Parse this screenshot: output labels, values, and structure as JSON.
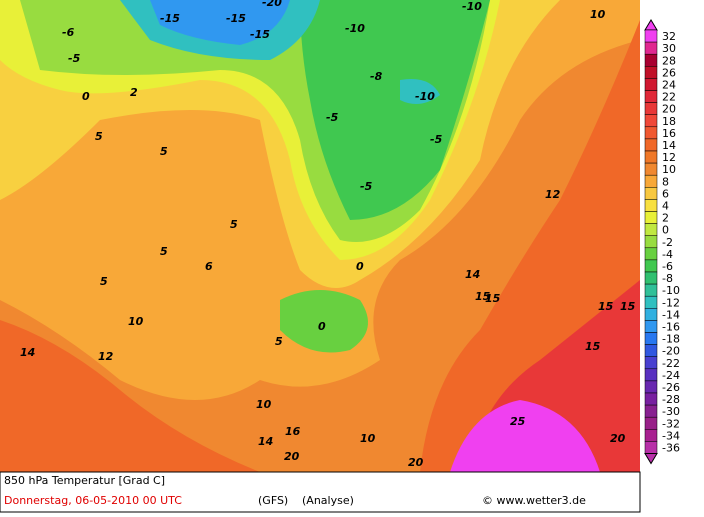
{
  "map": {
    "contour_labels": [
      -15,
      -15,
      -20,
      -15,
      -6,
      -5,
      -5,
      -10,
      -8,
      -10,
      -5,
      -10,
      -5,
      0,
      0,
      0,
      2,
      5,
      5,
      5,
      5,
      6,
      5,
      5,
      10,
      10,
      10,
      10,
      12,
      14,
      12,
      14,
      15,
      15,
      15,
      15,
      15,
      20,
      20,
      20,
      25,
      14,
      16
    ],
    "colorbar": {
      "values": [
        32,
        30,
        28,
        26,
        24,
        22,
        20,
        18,
        16,
        14,
        12,
        10,
        8,
        6,
        4,
        2,
        0,
        -2,
        -4,
        -6,
        -8,
        -10,
        -12,
        -14,
        -16,
        -18,
        -20,
        -22,
        -24,
        -26,
        -28,
        -30,
        -32,
        -34,
        -36
      ],
      "colors": [
        "#f040f0",
        "#e02890",
        "#a80030",
        "#c01028",
        "#d01830",
        "#e02838",
        "#e83838",
        "#f04838",
        "#f05830",
        "#f06828",
        "#f07828",
        "#f08830",
        "#f8a838",
        "#f8c840",
        "#f8e040",
        "#e8f038",
        "#c0e840",
        "#98dc40",
        "#68d040",
        "#40c850",
        "#30c070",
        "#30c098",
        "#30c0c0",
        "#30b0e0",
        "#3098f0",
        "#2878f0",
        "#3058e0",
        "#4840d0",
        "#5830c0",
        "#6828b0",
        "#7820a0",
        "#882090",
        "#982088",
        "#a82090",
        "#b830a8"
      ]
    }
  },
  "footer": {
    "title": "850 hPa Temperatur [Grad C]",
    "date": "Donnerstag, 06-05-2010  00 UTC",
    "model": "(GFS)",
    "run": "(Analyse)",
    "credit": "© www.wetter3.de"
  }
}
